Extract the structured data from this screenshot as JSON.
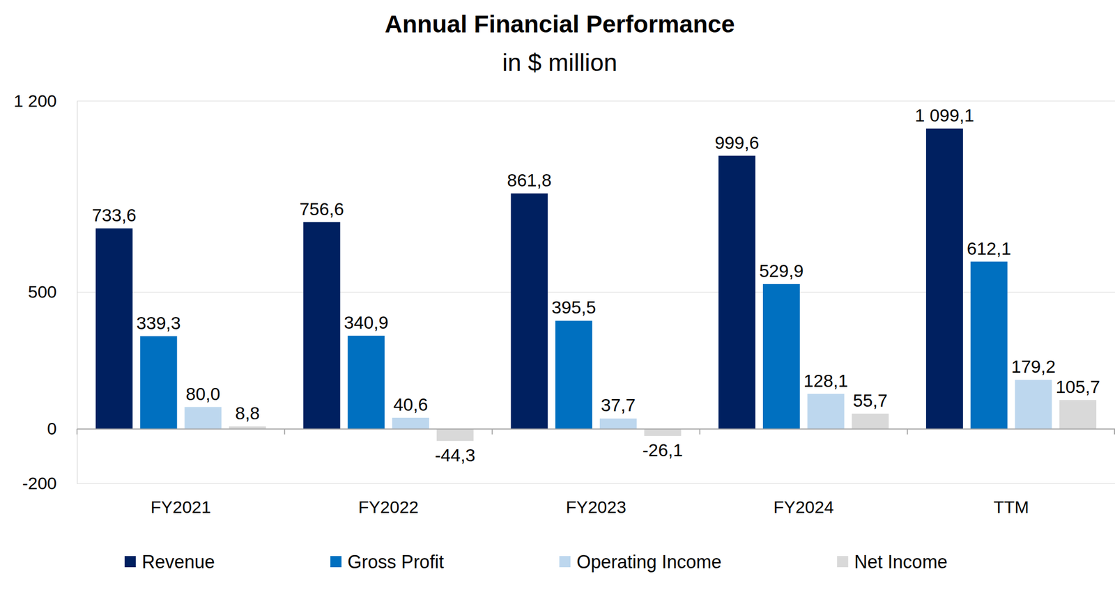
{
  "chart_data": {
    "type": "bar",
    "title": "Annual Financial Performance",
    "subtitle": "in $ million",
    "categories": [
      "FY2021",
      "FY2022",
      "FY2023",
      "FY2024",
      "TTM"
    ],
    "series": [
      {
        "name": "Revenue",
        "color": "#002060",
        "values": [
          733.6,
          756.6,
          861.8,
          999.6,
          1099.1
        ],
        "value_labels": [
          "733,6",
          "756,6",
          "861,8",
          "999,6",
          "1 099,1"
        ]
      },
      {
        "name": "Gross Profit",
        "color": "#0070C0",
        "values": [
          339.3,
          340.9,
          395.5,
          529.9,
          612.1
        ],
        "value_labels": [
          "339,3",
          "340,9",
          "395,5",
          "529,9",
          "612,1"
        ]
      },
      {
        "name": "Operating Income",
        "color": "#BDD7EE",
        "values": [
          80.0,
          40.6,
          37.7,
          128.1,
          179.2
        ],
        "value_labels": [
          "80,0",
          "40,6",
          "37,7",
          "128,1",
          "179,2"
        ]
      },
      {
        "name": "Net Income",
        "color": "#D9D9D9",
        "values": [
          8.8,
          -44.3,
          -26.1,
          55.7,
          105.7
        ],
        "value_labels": [
          "8,8",
          "-44,3",
          "-26,1",
          "55,7",
          "105,7"
        ]
      }
    ],
    "ylim": [
      -200,
      1200
    ],
    "yticks": [
      {
        "value": 1200,
        "label": "1 200"
      },
      500,
      0,
      -200
    ],
    "grid": true,
    "legend": "bottom",
    "data_labels": true
  }
}
